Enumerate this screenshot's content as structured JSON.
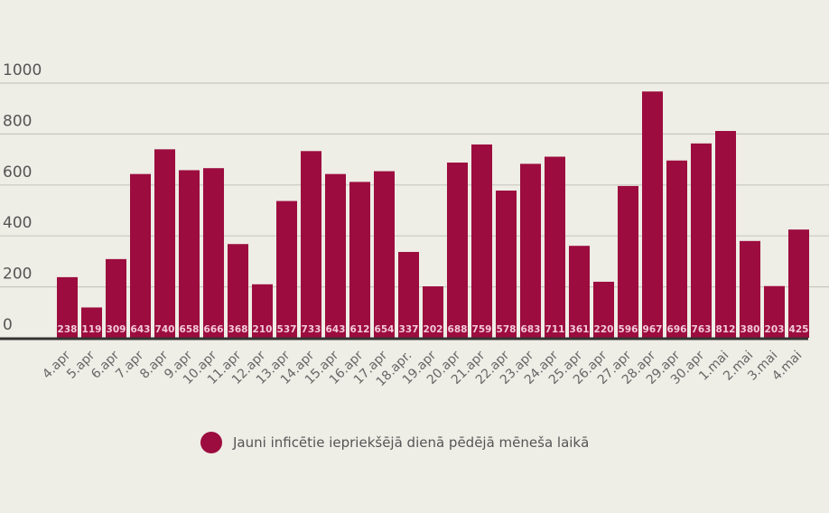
{
  "chart_data": {
    "type": "bar",
    "title": "",
    "xlabel": "",
    "ylabel": "",
    "ylim": [
      0,
      1000
    ],
    "yticks": [
      0,
      200,
      400,
      600,
      800,
      1000
    ],
    "grid": true,
    "legend_position": "bottom-center",
    "categories": [
      "4.apr",
      "5.apr",
      "6.apr",
      "7.apr",
      "8.apr",
      "9.apr",
      "10.apr",
      "11.apr",
      "12.apr",
      "13.apr",
      "14.apr",
      "15.apr",
      "16.apr",
      "17.apr",
      "18.apr.",
      "19.apr",
      "20.apr",
      "21.apr",
      "22.apr",
      "23.apr",
      "24.apr",
      "25.apr",
      "26.apr",
      "27.apr",
      "28.apr",
      "29.apr",
      "30.apr",
      "1.mai",
      "2.mai",
      "3.mai",
      "4.mai"
    ],
    "series": [
      {
        "name": "Jauni inficētie iepriekšējā dienā pēdējā mēneša laikā",
        "color": "#9c0c3e",
        "values": [
          238,
          119,
          309,
          643,
          740,
          658,
          666,
          368,
          210,
          537,
          733,
          643,
          612,
          654,
          337,
          202,
          688,
          759,
          578,
          683,
          711,
          361,
          220,
          596,
          967,
          696,
          763,
          812,
          380,
          203,
          425
        ]
      }
    ]
  },
  "legend": {
    "label": "Jauni inficētie iepriekšējā dienā pēdējā mēneša laikā",
    "color": "#9c0c3e"
  }
}
